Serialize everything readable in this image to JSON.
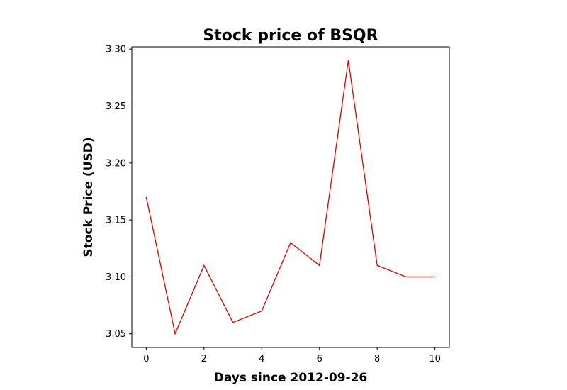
{
  "chart_data": {
    "type": "line",
    "title": "Stock price of BSQR",
    "xlabel": "Days since 2012-09-26",
    "ylabel": "Stock Price (USD)",
    "x": [
      0,
      1,
      2,
      3,
      4,
      5,
      6,
      7,
      8,
      9,
      10
    ],
    "series": [
      {
        "values": [
          3.17,
          3.05,
          3.11,
          3.06,
          3.07,
          3.13,
          3.11,
          3.29,
          3.11,
          3.1,
          3.1
        ]
      }
    ],
    "xlim": [
      -0.5,
      10.5
    ],
    "ylim": [
      3.038,
      3.302
    ],
    "xticks": [
      0,
      2,
      4,
      6,
      8,
      10
    ],
    "xtick_labels": [
      "0",
      "2",
      "4",
      "6",
      "8",
      "10"
    ],
    "yticks": [
      3.05,
      3.1,
      3.15,
      3.2,
      3.25,
      3.3
    ],
    "ytick_labels": [
      "3.05",
      "3.10",
      "3.15",
      "3.20",
      "3.25",
      "3.30"
    ],
    "line_color": "#dd0000",
    "grid": false,
    "legend": "none"
  }
}
